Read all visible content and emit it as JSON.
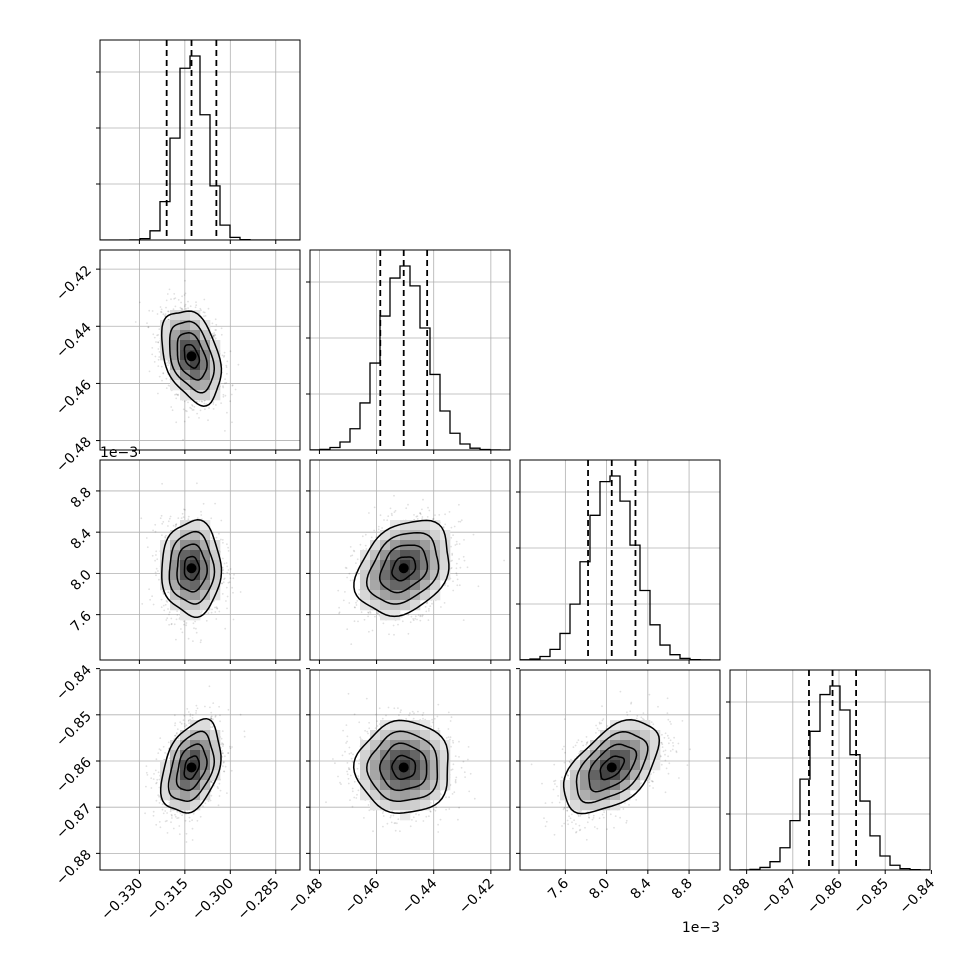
{
  "chart_data": {
    "type": "corner",
    "grid": true,
    "parameters": [
      {
        "range": [
          -0.343,
          -0.277
        ],
        "ticks": [
          -0.33,
          -0.315,
          -0.3,
          -0.285
        ],
        "tick_labels": [
          "−0.330",
          "−0.315",
          "−0.300",
          "−0.285"
        ],
        "offset_text": "",
        "quantiles": [
          -0.321,
          -0.3128,
          -0.3046
        ],
        "mean": -0.3128,
        "sd": 0.0049,
        "hist_ticks": [
          0.002,
          0.005,
          0.008
        ]
      },
      {
        "range": [
          -0.4833,
          -0.4133
        ],
        "ticks": [
          -0.48,
          -0.46,
          -0.44,
          -0.42
        ],
        "tick_labels": [
          "−0.48",
          "−0.46",
          "−0.44",
          "−0.42"
        ],
        "offset_text": "",
        "quantiles": [
          -0.4587,
          -0.4505,
          -0.4423
        ],
        "mean": -0.4505,
        "sd": 0.0082,
        "hist_ticks": [
          0.0015,
          0.0035,
          0.0055
        ]
      },
      {
        "range": [
          7.16,
          9.1
        ],
        "ticks": [
          7.6,
          8.0,
          8.4,
          8.8
        ],
        "tick_labels": [
          "7.6",
          "8.0",
          "8.4",
          "8.8"
        ],
        "offset_text": "1e−3",
        "quantiles": [
          7.82,
          8.05,
          8.28
        ],
        "mean": 8.05,
        "sd": 0.23,
        "hist_ticks": [
          0.002,
          0.0045,
          0.007
        ]
      },
      {
        "range": [
          -0.8836,
          -0.8403
        ],
        "ticks": [
          -0.88,
          -0.87,
          -0.86,
          -0.85,
          -0.84
        ],
        "tick_labels": [
          "−0.88",
          "−0.87",
          "−0.86",
          "−0.85",
          "−0.84"
        ],
        "offset_text": "",
        "quantiles": [
          -0.8665,
          -0.8614,
          -0.8563
        ],
        "mean": -0.8614,
        "sd": 0.005,
        "hist_ticks": [
          0.0015,
          0.0035,
          0.0055
        ]
      }
    ],
    "correlations": {
      "1-0": -0.35,
      "2-0": 0.0,
      "2-1": 0.28,
      "3-0": 0.35,
      "3-1": 0.0,
      "3-2": 0.5
    }
  }
}
